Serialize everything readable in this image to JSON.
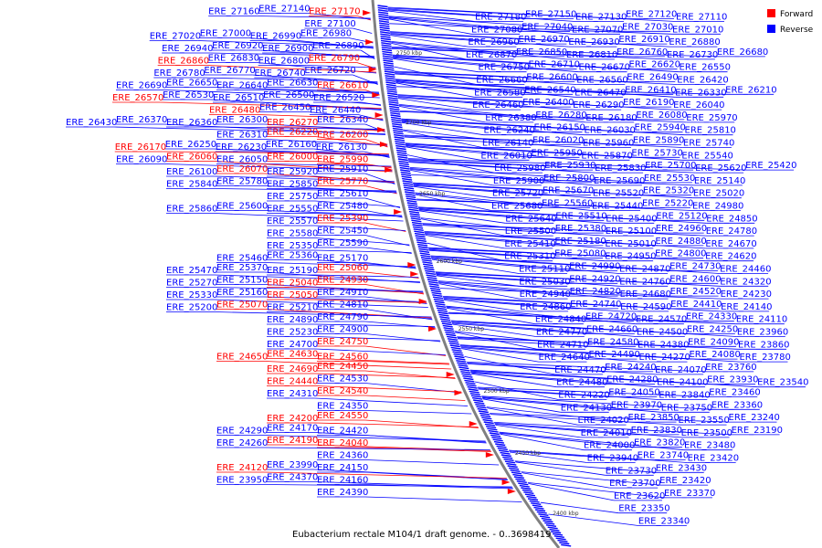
{
  "caption": "Eubacterium rectale M104/1 draft genome. - 0..3698419",
  "legend": [
    {
      "label": "Forward",
      "color": "#ff0000"
    },
    {
      "label": "Reverse",
      "color": "#0000ff"
    }
  ],
  "colors": {
    "forward": "#ff0000",
    "reverse": "#0000ff",
    "backbone": "#808080"
  },
  "ruler": [
    "2750 kbp",
    "2700 kbp",
    "2650 kbp",
    "2600 kbp",
    "2550 kbp",
    "2500 kbp",
    "2450 kbp",
    "2400 kbp"
  ],
  "left_labels": [
    {
      "t": "ERE_27160",
      "s": "r"
    },
    {
      "t": "ERE_27140",
      "s": "r"
    },
    {
      "t": "ERE_27170",
      "s": "f"
    },
    {
      "t": "ERE_27100",
      "s": "r"
    },
    {
      "t": "ERE_27020",
      "s": "r"
    },
    {
      "t": "ERE_27000",
      "s": "r"
    },
    {
      "t": "ERE_26990",
      "s": "r"
    },
    {
      "t": "ERE_26980",
      "s": "r"
    },
    {
      "t": "ERE_26940",
      "s": "r"
    },
    {
      "t": "ERE_26920",
      "s": "r"
    },
    {
      "t": "ERE_26900",
      "s": "r"
    },
    {
      "t": "ERE_26890",
      "s": "r"
    },
    {
      "t": "ERE_26860",
      "s": "f"
    },
    {
      "t": "ERE_26830",
      "s": "r"
    },
    {
      "t": "ERE_26800",
      "s": "r"
    },
    {
      "t": "ERE_26790",
      "s": "f"
    },
    {
      "t": "ERE_26780",
      "s": "r"
    },
    {
      "t": "ERE_26770",
      "s": "r"
    },
    {
      "t": "ERE_26740",
      "s": "r"
    },
    {
      "t": "ERE_26720",
      "s": "r"
    },
    {
      "t": "ERE_26690",
      "s": "r"
    },
    {
      "t": "ERE_26650",
      "s": "r"
    },
    {
      "t": "ERE_26640",
      "s": "r"
    },
    {
      "t": "ERE_26630",
      "s": "r"
    },
    {
      "t": "ERE_26610",
      "s": "f"
    },
    {
      "t": "ERE_26570",
      "s": "f"
    },
    {
      "t": "ERE_26530",
      "s": "r"
    },
    {
      "t": "ERE_26510",
      "s": "r"
    },
    {
      "t": "ERE_26500",
      "s": "r"
    },
    {
      "t": "ERE_26520",
      "s": "r"
    },
    {
      "t": "ERE_26480",
      "s": "f"
    },
    {
      "t": "ERE_26450",
      "s": "r"
    },
    {
      "t": "ERE_26440",
      "s": "r"
    },
    {
      "t": "ERE_26430",
      "s": "r"
    },
    {
      "t": "ERE_26370",
      "s": "r"
    },
    {
      "t": "ERE_26360",
      "s": "r"
    },
    {
      "t": "ERE_26300",
      "s": "r"
    },
    {
      "t": "ERE_26270",
      "s": "f"
    },
    {
      "t": "ERE_26340",
      "s": "r"
    },
    {
      "t": "ERE_26310",
      "s": "r"
    },
    {
      "t": "ERE_26220",
      "s": "f"
    },
    {
      "t": "ERE_26200",
      "s": "f"
    },
    {
      "t": "ERE_26170",
      "s": "f"
    },
    {
      "t": "ERE_26250",
      "s": "r"
    },
    {
      "t": "ERE_26230",
      "s": "r"
    },
    {
      "t": "ERE_26160",
      "s": "r"
    },
    {
      "t": "ERE_26130",
      "s": "r"
    },
    {
      "t": "ERE_26090",
      "s": "r"
    },
    {
      "t": "ERE_26060",
      "s": "f"
    },
    {
      "t": "ERE_26050",
      "s": "r"
    },
    {
      "t": "ERE_26000",
      "s": "f"
    },
    {
      "t": "ERE_25990",
      "s": "f"
    },
    {
      "t": "ERE_26100",
      "s": "r"
    },
    {
      "t": "ERE_26070",
      "s": "f"
    },
    {
      "t": "ERE_25920",
      "s": "r"
    },
    {
      "t": "ERE_25910",
      "s": "r"
    },
    {
      "t": "ERE_25840",
      "s": "r"
    },
    {
      "t": "ERE_25780",
      "s": "r"
    },
    {
      "t": "ERE_25850",
      "s": "r"
    },
    {
      "t": "ERE_25770",
      "s": "f"
    },
    {
      "t": "ERE_25750",
      "s": "r"
    },
    {
      "t": "ERE_25610",
      "s": "r"
    },
    {
      "t": "ERE_25860",
      "s": "r"
    },
    {
      "t": "ERE_25600",
      "s": "r"
    },
    {
      "t": "ERE_25550",
      "s": "r"
    },
    {
      "t": "ERE_25480",
      "s": "r"
    },
    {
      "t": "ERE_25570",
      "s": "r"
    },
    {
      "t": "ERE_25390",
      "s": "f"
    },
    {
      "t": "ERE_25580",
      "s": "r"
    },
    {
      "t": "ERE_25450",
      "s": "r"
    },
    {
      "t": "ERE_25350",
      "s": "r"
    },
    {
      "t": "ERE_25590",
      "s": "r"
    },
    {
      "t": "ERE_25460",
      "s": "r"
    },
    {
      "t": "ERE_25360",
      "s": "r"
    },
    {
      "t": "ERE_25170",
      "s": "r"
    },
    {
      "t": "ERE_25470",
      "s": "r"
    },
    {
      "t": "ERE_25370",
      "s": "r"
    },
    {
      "t": "ERE_25190",
      "s": "r"
    },
    {
      "t": "ERE_25060",
      "s": "f"
    },
    {
      "t": "ERE_25270",
      "s": "r"
    },
    {
      "t": "ERE_25150",
      "s": "r"
    },
    {
      "t": "ERE_25040",
      "s": "f"
    },
    {
      "t": "ERE_24930",
      "s": "f"
    },
    {
      "t": "ERE_25330",
      "s": "r"
    },
    {
      "t": "ERE_25160",
      "s": "r"
    },
    {
      "t": "ERE_25050",
      "s": "f"
    },
    {
      "t": "ERE_24910",
      "s": "r"
    },
    {
      "t": "ERE_25200",
      "s": "r"
    },
    {
      "t": "ERE_25070",
      "s": "f"
    },
    {
      "t": "ERE_25210",
      "s": "r"
    },
    {
      "t": "ERE_24810",
      "s": "r"
    },
    {
      "t": "ERE_24890",
      "s": "r"
    },
    {
      "t": "ERE_24790",
      "s": "r"
    },
    {
      "t": "ERE_25230",
      "s": "r"
    },
    {
      "t": "ERE_24900",
      "s": "r"
    },
    {
      "t": "ERE_24700",
      "s": "r"
    },
    {
      "t": "ERE_24750",
      "s": "f"
    },
    {
      "t": "ERE_24650",
      "s": "f"
    },
    {
      "t": "ERE_24630",
      "s": "f"
    },
    {
      "t": "ERE_24560",
      "s": "f"
    },
    {
      "t": "ERE_24690",
      "s": "f"
    },
    {
      "t": "ERE_24450",
      "s": "f"
    },
    {
      "t": "ERE_24440",
      "s": "f"
    },
    {
      "t": "ERE_24530",
      "s": "r"
    },
    {
      "t": "ERE_24310",
      "s": "r"
    },
    {
      "t": "ERE_24540",
      "s": "f"
    },
    {
      "t": "ERE_24350",
      "s": "r"
    },
    {
      "t": "ERE_24200",
      "s": "f"
    },
    {
      "t": "ERE_24550",
      "s": "f"
    },
    {
      "t": "ERE_24290",
      "s": "r"
    },
    {
      "t": "ERE_24170",
      "s": "r"
    },
    {
      "t": "ERE_24420",
      "s": "r"
    },
    {
      "t": "ERE_24260",
      "s": "r"
    },
    {
      "t": "ERE_24190",
      "s": "f"
    },
    {
      "t": "ERE_24040",
      "s": "f"
    },
    {
      "t": "ERE_24360",
      "s": "r"
    },
    {
      "t": "ERE_24120",
      "s": "f"
    },
    {
      "t": "ERE_23990",
      "s": "r"
    },
    {
      "t": "ERE_24150",
      "s": "r"
    },
    {
      "t": "ERE_23950",
      "s": "r"
    },
    {
      "t": "ERE_24370",
      "s": "r"
    },
    {
      "t": "ERE_24160",
      "s": "r"
    },
    {
      "t": "ERE_24390",
      "s": "r"
    }
  ],
  "right_labels": [
    {
      "t": "ERE_27180",
      "s": "r"
    },
    {
      "t": "ERE_27150",
      "s": "r"
    },
    {
      "t": "ERE_27130",
      "s": "r"
    },
    {
      "t": "ERE_27120",
      "s": "r"
    },
    {
      "t": "ERE_27110",
      "s": "r"
    },
    {
      "t": "ERE_27080",
      "s": "r"
    },
    {
      "t": "ERE_27040",
      "s": "r"
    },
    {
      "t": "ERE_27070",
      "s": "r"
    },
    {
      "t": "ERE_27030",
      "s": "r"
    },
    {
      "t": "ERE_27010",
      "s": "r"
    },
    {
      "t": "ERE_26960",
      "s": "r"
    },
    {
      "t": "ERE_26970",
      "s": "r"
    },
    {
      "t": "ERE_26930",
      "s": "r"
    },
    {
      "t": "ERE_26910",
      "s": "r"
    },
    {
      "t": "ERE_26880",
      "s": "r"
    },
    {
      "t": "ERE_26870",
      "s": "r"
    },
    {
      "t": "ERE_26850",
      "s": "r"
    },
    {
      "t": "ERE_26810",
      "s": "r"
    },
    {
      "t": "ERE_26760",
      "s": "r"
    },
    {
      "t": "ERE_26730",
      "s": "r"
    },
    {
      "t": "ERE_26680",
      "s": "r"
    },
    {
      "t": "ERE_26750",
      "s": "r"
    },
    {
      "t": "ERE_26710",
      "s": "r"
    },
    {
      "t": "ERE_26670",
      "s": "r"
    },
    {
      "t": "ERE_26620",
      "s": "r"
    },
    {
      "t": "ERE_26550",
      "s": "r"
    },
    {
      "t": "ERE_26660",
      "s": "r"
    },
    {
      "t": "ERE_26600",
      "s": "r"
    },
    {
      "t": "ERE_26560",
      "s": "r"
    },
    {
      "t": "ERE_26490",
      "s": "r"
    },
    {
      "t": "ERE_26420",
      "s": "r"
    },
    {
      "t": "ERE_26580",
      "s": "r"
    },
    {
      "t": "ERE_26540",
      "s": "r"
    },
    {
      "t": "ERE_26470",
      "s": "r"
    },
    {
      "t": "ERE_26410",
      "s": "r"
    },
    {
      "t": "ERE_26330",
      "s": "r"
    },
    {
      "t": "ERE_26210",
      "s": "r"
    },
    {
      "t": "ERE_26460",
      "s": "r"
    },
    {
      "t": "ERE_26400",
      "s": "r"
    },
    {
      "t": "ERE_26290",
      "s": "r"
    },
    {
      "t": "ERE_26190",
      "s": "r"
    },
    {
      "t": "ERE_26040",
      "s": "r"
    },
    {
      "t": "ERE_26380",
      "s": "r"
    },
    {
      "t": "ERE_26280",
      "s": "r"
    },
    {
      "t": "ERE_26180",
      "s": "r"
    },
    {
      "t": "ERE_26080",
      "s": "r"
    },
    {
      "t": "ERE_25970",
      "s": "r"
    },
    {
      "t": "ERE_26240",
      "s": "r"
    },
    {
      "t": "ERE_26150",
      "s": "r"
    },
    {
      "t": "ERE_26030",
      "s": "r"
    },
    {
      "t": "ERE_25940",
      "s": "r"
    },
    {
      "t": "ERE_25810",
      "s": "r"
    },
    {
      "t": "ERE_26140",
      "s": "r"
    },
    {
      "t": "ERE_26020",
      "s": "r"
    },
    {
      "t": "ERE_25960",
      "s": "r"
    },
    {
      "t": "ERE_25890",
      "s": "r"
    },
    {
      "t": "ERE_25740",
      "s": "r"
    },
    {
      "t": "ERE_26010",
      "s": "r"
    },
    {
      "t": "ERE_25950",
      "s": "r"
    },
    {
      "t": "ERE_25870",
      "s": "r"
    },
    {
      "t": "ERE_25730",
      "s": "r"
    },
    {
      "t": "ERE_25540",
      "s": "r"
    },
    {
      "t": "ERE_25980",
      "s": "r"
    },
    {
      "t": "ERE_25930",
      "s": "r"
    },
    {
      "t": "ERE_25830",
      "s": "r"
    },
    {
      "t": "ERE_25700",
      "s": "r"
    },
    {
      "t": "ERE_25620",
      "s": "r"
    },
    {
      "t": "ERE_25420",
      "s": "r"
    },
    {
      "t": "ERE_25900",
      "s": "r"
    },
    {
      "t": "ERE_25800",
      "s": "r"
    },
    {
      "t": "ERE_25690",
      "s": "r"
    },
    {
      "t": "ERE_25530",
      "s": "r"
    },
    {
      "t": "ERE_25140",
      "s": "r"
    },
    {
      "t": "ERE_25720",
      "s": "r"
    },
    {
      "t": "ERE_25670",
      "s": "r"
    },
    {
      "t": "ERE_25520",
      "s": "r"
    },
    {
      "t": "ERE_25320",
      "s": "r"
    },
    {
      "t": "ERE_25020",
      "s": "r"
    },
    {
      "t": "ERE_25680",
      "s": "r"
    },
    {
      "t": "ERE_25560",
      "s": "r"
    },
    {
      "t": "ERE_25440",
      "s": "r"
    },
    {
      "t": "ERE_25220",
      "s": "r"
    },
    {
      "t": "ERE_24980",
      "s": "r"
    },
    {
      "t": "ERE_25640",
      "s": "r"
    },
    {
      "t": "ERE_25510",
      "s": "r"
    },
    {
      "t": "ERE_25400",
      "s": "r"
    },
    {
      "t": "ERE_25120",
      "s": "r"
    },
    {
      "t": "ERE_24850",
      "s": "r"
    },
    {
      "t": "ERE_25500",
      "s": "r"
    },
    {
      "t": "ERE_25380",
      "s": "r"
    },
    {
      "t": "ERE_25100",
      "s": "r"
    },
    {
      "t": "ERE_24960",
      "s": "r"
    },
    {
      "t": "ERE_24780",
      "s": "r"
    },
    {
      "t": "ERE_25410",
      "s": "r"
    },
    {
      "t": "ERE_25180",
      "s": "r"
    },
    {
      "t": "ERE_25010",
      "s": "r"
    },
    {
      "t": "ERE_24880",
      "s": "r"
    },
    {
      "t": "ERE_24670",
      "s": "r"
    },
    {
      "t": "ERE_25310",
      "s": "r"
    },
    {
      "t": "ERE_25080",
      "s": "r"
    },
    {
      "t": "ERE_24950",
      "s": "r"
    },
    {
      "t": "ERE_24800",
      "s": "r"
    },
    {
      "t": "ERE_24620",
      "s": "r"
    },
    {
      "t": "ERE_25110",
      "s": "r"
    },
    {
      "t": "ERE_24990",
      "s": "r"
    },
    {
      "t": "ERE_24870",
      "s": "r"
    },
    {
      "t": "ERE_24730",
      "s": "r"
    },
    {
      "t": "ERE_24460",
      "s": "r"
    },
    {
      "t": "ERE_25030",
      "s": "r"
    },
    {
      "t": "ERE_24920",
      "s": "r"
    },
    {
      "t": "ERE_24760",
      "s": "r"
    },
    {
      "t": "ERE_24600",
      "s": "r"
    },
    {
      "t": "ERE_24320",
      "s": "r"
    },
    {
      "t": "ERE_24940",
      "s": "r"
    },
    {
      "t": "ERE_24820",
      "s": "r"
    },
    {
      "t": "ERE_24680",
      "s": "r"
    },
    {
      "t": "ERE_24520",
      "s": "r"
    },
    {
      "t": "ERE_24230",
      "s": "r"
    },
    {
      "t": "ERE_24860",
      "s": "r"
    },
    {
      "t": "ERE_24740",
      "s": "r"
    },
    {
      "t": "ERE_24590",
      "s": "r"
    },
    {
      "t": "ERE_24410",
      "s": "r"
    },
    {
      "t": "ERE_24140",
      "s": "r"
    },
    {
      "t": "ERE_24840",
      "s": "r"
    },
    {
      "t": "ERE_24720",
      "s": "r"
    },
    {
      "t": "ERE_24570",
      "s": "r"
    },
    {
      "t": "ERE_24330",
      "s": "r"
    },
    {
      "t": "ERE_24110",
      "s": "r"
    },
    {
      "t": "ERE_24770",
      "s": "r"
    },
    {
      "t": "ERE_24660",
      "s": "r"
    },
    {
      "t": "ERE_24500",
      "s": "r"
    },
    {
      "t": "ERE_24250",
      "s": "r"
    },
    {
      "t": "ERE_23960",
      "s": "r"
    },
    {
      "t": "ERE_24710",
      "s": "r"
    },
    {
      "t": "ERE_24580",
      "s": "r"
    },
    {
      "t": "ERE_24380",
      "s": "r"
    },
    {
      "t": "ERE_24090",
      "s": "r"
    },
    {
      "t": "ERE_23860",
      "s": "r"
    },
    {
      "t": "ERE_24640",
      "s": "r"
    },
    {
      "t": "ERE_24490",
      "s": "r"
    },
    {
      "t": "ERE_24270",
      "s": "r"
    },
    {
      "t": "ERE_24080",
      "s": "r"
    },
    {
      "t": "ERE_23780",
      "s": "r"
    },
    {
      "t": "ERE_24470",
      "s": "r"
    },
    {
      "t": "ERE_24240",
      "s": "r"
    },
    {
      "t": "ERE_24070",
      "s": "r"
    },
    {
      "t": "ERE_23760",
      "s": "r"
    },
    {
      "t": "ERE_24480",
      "s": "r"
    },
    {
      "t": "ERE_24280",
      "s": "r"
    },
    {
      "t": "ERE_24100",
      "s": "r"
    },
    {
      "t": "ERE_23930",
      "s": "r"
    },
    {
      "t": "ERE_23540",
      "s": "r"
    },
    {
      "t": "ERE_24220",
      "s": "r"
    },
    {
      "t": "ERE_24050",
      "s": "r"
    },
    {
      "t": "ERE_23840",
      "s": "r"
    },
    {
      "t": "ERE_23460",
      "s": "r"
    },
    {
      "t": "ERE_24130",
      "s": "r"
    },
    {
      "t": "ERE_23970",
      "s": "r"
    },
    {
      "t": "ERE_23750",
      "s": "r"
    },
    {
      "t": "ERE_23360",
      "s": "r"
    },
    {
      "t": "ERE_24020",
      "s": "r"
    },
    {
      "t": "ERE_23850",
      "s": "r"
    },
    {
      "t": "ERE_23550",
      "s": "r"
    },
    {
      "t": "ERE_23240",
      "s": "r"
    },
    {
      "t": "ERE_24010",
      "s": "r"
    },
    {
      "t": "ERE_23830",
      "s": "r"
    },
    {
      "t": "ERE_23500",
      "s": "r"
    },
    {
      "t": "ERE_23190",
      "s": "r"
    },
    {
      "t": "ERE_24000",
      "s": "r"
    },
    {
      "t": "ERE_23820",
      "s": "r"
    },
    {
      "t": "ERE_23480",
      "s": "r"
    },
    {
      "t": "ERE_23940",
      "s": "r"
    },
    {
      "t": "ERE_23740",
      "s": "r"
    },
    {
      "t": "ERE_23420",
      "s": "r"
    },
    {
      "t": "ERE_23730",
      "s": "r"
    },
    {
      "t": "ERE_23430",
      "s": "r"
    },
    {
      "t": "ERE_23700",
      "s": "r"
    },
    {
      "t": "ERE_23420",
      "s": "r"
    },
    {
      "t": "ERE_23620",
      "s": "r"
    },
    {
      "t": "ERE_23370",
      "s": "r"
    },
    {
      "t": "ERE_23350",
      "s": "r"
    },
    {
      "t": "ERE_23340",
      "s": "r"
    }
  ]
}
